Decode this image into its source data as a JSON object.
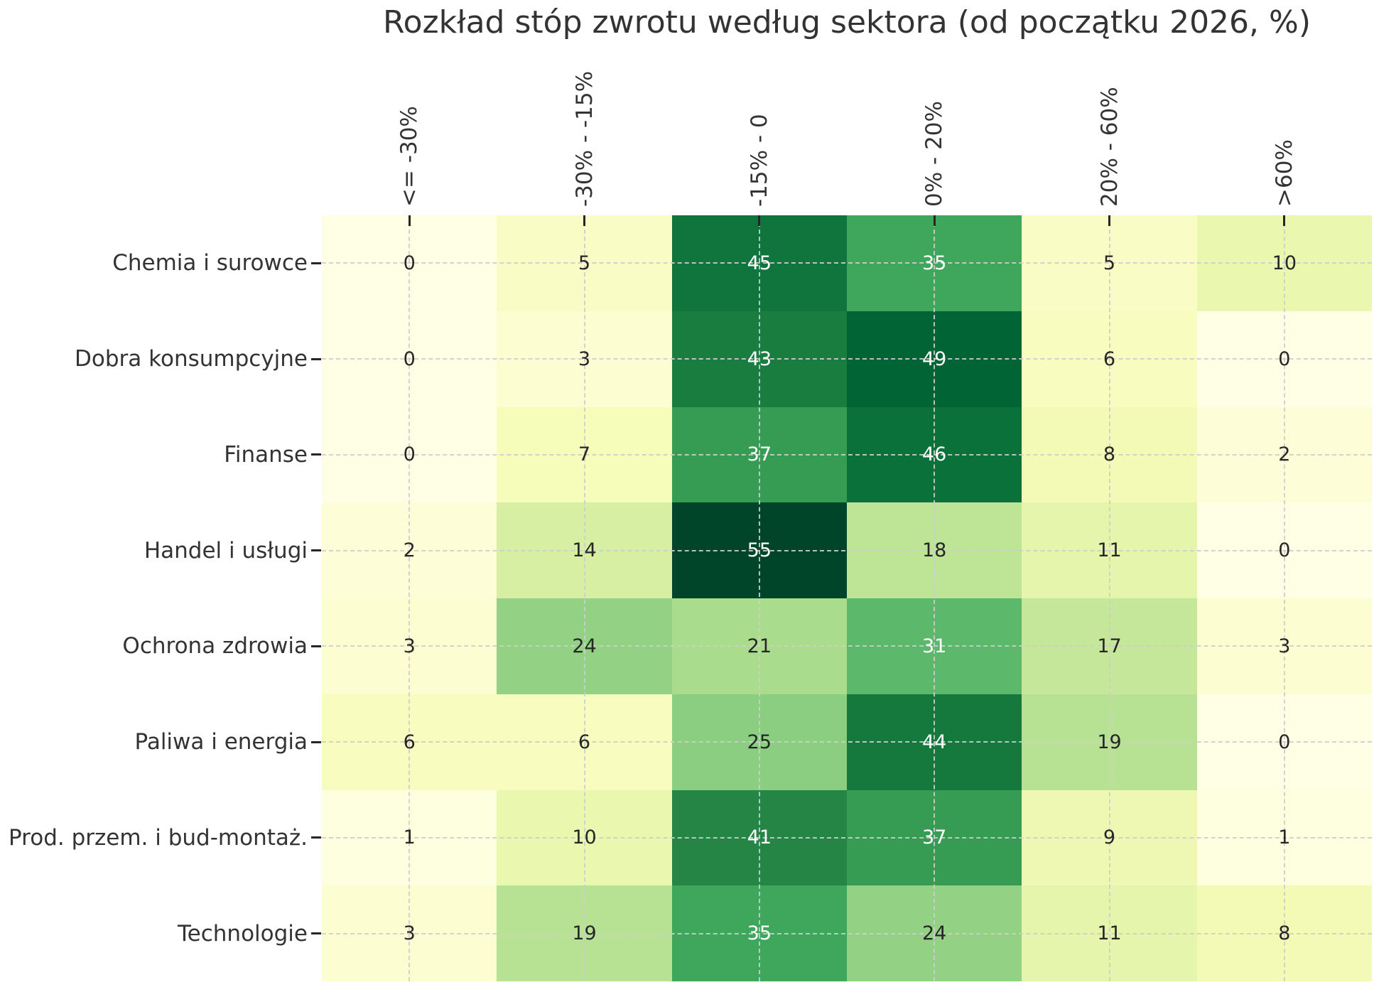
{
  "chart_data": {
    "type": "heatmap",
    "title": "Rozkład stóp zwrotu według sektora (od początku 2026, %)",
    "columns": [
      "<= -30%",
      "-30% - -15%",
      "-15% - 0",
      "0% - 20%",
      "20% - 60%",
      ">60%"
    ],
    "rows": [
      "Chemia i surowce",
      "Dobra konsumpcyjne",
      "Finanse",
      "Handel i usługi",
      "Ochrona zdrowia",
      "Paliwa i energia",
      "Prod. przem. i bud-montaż.",
      "Technologie"
    ],
    "series": [
      {
        "name": "Chemia i surowce",
        "values": [
          0,
          5,
          45,
          35,
          5,
          10
        ]
      },
      {
        "name": "Dobra konsumpcyjne",
        "values": [
          0,
          3,
          43,
          49,
          6,
          0
        ]
      },
      {
        "name": "Finanse",
        "values": [
          0,
          7,
          37,
          46,
          8,
          2
        ]
      },
      {
        "name": "Handel i usługi",
        "values": [
          2,
          14,
          55,
          18,
          11,
          0
        ]
      },
      {
        "name": "Ochrona zdrowia",
        "values": [
          3,
          24,
          21,
          31,
          17,
          3
        ]
      },
      {
        "name": "Paliwa i energia",
        "values": [
          6,
          6,
          25,
          44,
          19,
          0
        ]
      },
      {
        "name": "Prod. przem. i bud-montaż.",
        "values": [
          1,
          10,
          41,
          37,
          9,
          1
        ]
      },
      {
        "name": "Technologie",
        "values": [
          3,
          19,
          35,
          24,
          11,
          8
        ]
      }
    ],
    "vmin": 0,
    "vmax": 55,
    "colormap": {
      "name": "YlGn",
      "stops": [
        "#ffffe5",
        "#f7fcb9",
        "#d9f0a3",
        "#addd8e",
        "#78c679",
        "#41ab5d",
        "#238443",
        "#006837",
        "#004529"
      ]
    },
    "annotation_colors": {
      "dark": "#262626",
      "light": "#ffffff"
    },
    "grid": {
      "on": true,
      "style": "dashed",
      "color": "#cdcdcd"
    },
    "legend": "none",
    "axes": {
      "x_labels_position": "top",
      "x_labels_rotation_deg": 90
    }
  }
}
